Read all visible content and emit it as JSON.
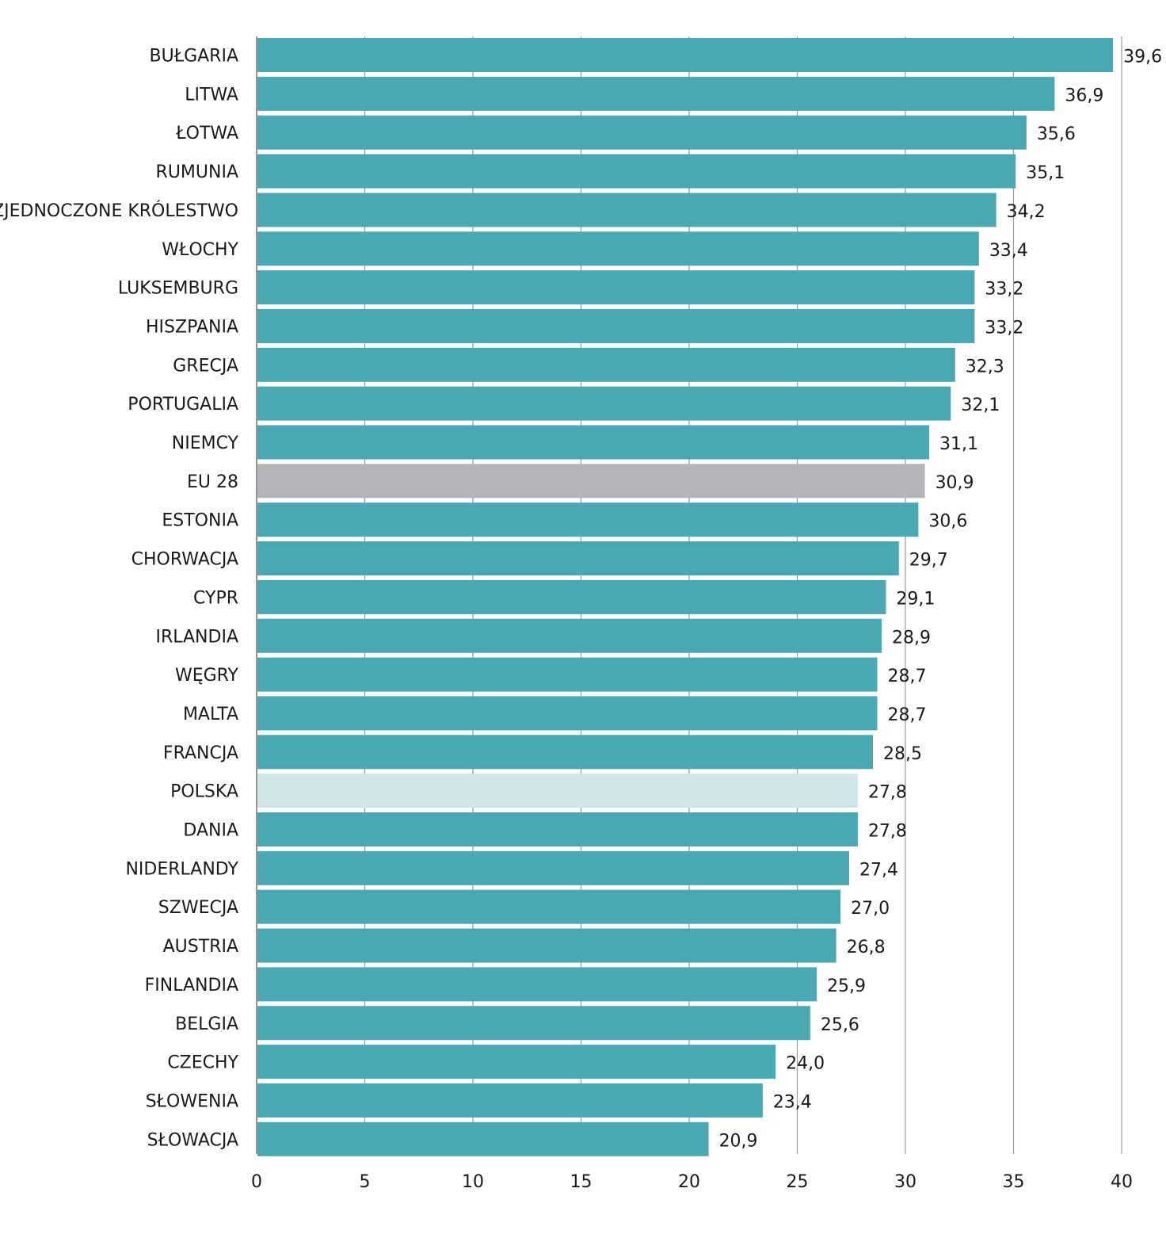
{
  "chart_data": {
    "type": "bar",
    "orientation": "horizontal",
    "title": "",
    "xlabel": "",
    "ylabel": "",
    "xlim": [
      0,
      40
    ],
    "ticks": [
      0,
      5,
      10,
      15,
      20,
      25,
      30,
      35,
      40
    ],
    "grid": true,
    "legend": "none",
    "colors": {
      "bar": "#4aa8b5",
      "eu": "#b3b5b8",
      "poland": "#d2e6ea",
      "gridline": "#9a9a9a",
      "axis": "#707070",
      "text": "#1a1a1a"
    },
    "bars": [
      {
        "category": "BUŁGARIA",
        "value": 39.6,
        "label": "39,6",
        "kind": "country"
      },
      {
        "category": "LITWA",
        "value": 36.9,
        "label": "36,9",
        "kind": "country"
      },
      {
        "category": "ŁOTWA",
        "value": 35.6,
        "label": "35,6",
        "kind": "country"
      },
      {
        "category": "RUMUNIA",
        "value": 35.1,
        "label": "35,1",
        "kind": "country"
      },
      {
        "category": "ZJEDNOCZONE KRÓLESTWO",
        "value": 34.2,
        "label": "34,2",
        "kind": "country"
      },
      {
        "category": "WŁOCHY",
        "value": 33.4,
        "label": "33,4",
        "kind": "country"
      },
      {
        "category": "LUKSEMBURG",
        "value": 33.2,
        "label": "33,2",
        "kind": "country"
      },
      {
        "category": "HISZPANIA",
        "value": 33.2,
        "label": "33,2",
        "kind": "country"
      },
      {
        "category": "GRECJA",
        "value": 32.3,
        "label": "32,3",
        "kind": "country"
      },
      {
        "category": "PORTUGALIA",
        "value": 32.1,
        "label": "32,1",
        "kind": "country"
      },
      {
        "category": "NIEMCY",
        "value": 31.1,
        "label": "31,1",
        "kind": "country"
      },
      {
        "category": "EU 28",
        "value": 30.9,
        "label": "30,9",
        "kind": "eu"
      },
      {
        "category": "ESTONIA",
        "value": 30.6,
        "label": "30,6",
        "kind": "country"
      },
      {
        "category": "CHORWACJA",
        "value": 29.7,
        "label": "29,7",
        "kind": "country"
      },
      {
        "category": "CYPR",
        "value": 29.1,
        "label": "29,1",
        "kind": "country"
      },
      {
        "category": "IRLANDIA",
        "value": 28.9,
        "label": "28,9",
        "kind": "country"
      },
      {
        "category": "WĘGRY",
        "value": 28.7,
        "label": "28,7",
        "kind": "country"
      },
      {
        "category": "MALTA",
        "value": 28.7,
        "label": "28,7",
        "kind": "country"
      },
      {
        "category": "FRANCJA",
        "value": 28.5,
        "label": "28,5",
        "kind": "country"
      },
      {
        "category": "POLSKA",
        "value": 27.8,
        "label": "27,8",
        "kind": "poland"
      },
      {
        "category": "DANIA",
        "value": 27.8,
        "label": "27,8",
        "kind": "country"
      },
      {
        "category": "NIDERLANDY",
        "value": 27.4,
        "label": "27,4",
        "kind": "country"
      },
      {
        "category": "SZWECJA",
        "value": 27.0,
        "label": "27,0",
        "kind": "country"
      },
      {
        "category": "AUSTRIA",
        "value": 26.8,
        "label": "26,8",
        "kind": "country"
      },
      {
        "category": "FINLANDIA",
        "value": 25.9,
        "label": "25,9",
        "kind": "country"
      },
      {
        "category": "BELGIA",
        "value": 25.6,
        "label": "25,6",
        "kind": "country"
      },
      {
        "category": "CZECHY",
        "value": 24.0,
        "label": "24,0",
        "kind": "country"
      },
      {
        "category": "SŁOWENIA",
        "value": 23.4,
        "label": "23,4",
        "kind": "country"
      },
      {
        "category": "SŁOWACJA",
        "value": 20.9,
        "label": "20,9",
        "kind": "country"
      }
    ]
  }
}
